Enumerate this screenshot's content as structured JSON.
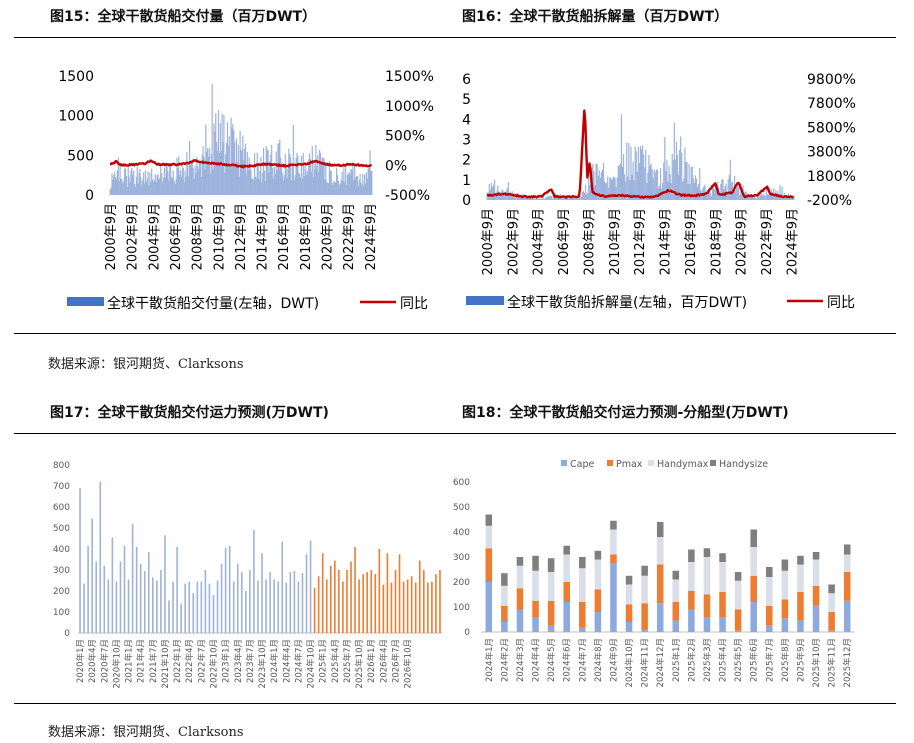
{
  "source_text": "数据来源：银河期货、Clarksons",
  "figures": {
    "fig15": {
      "title": "图15：全球干散货船交付量（百万DWT）"
    },
    "fig16": {
      "title": "图16：全球干散货船拆解量（百万DWT）"
    },
    "fig17": {
      "title": "图17：全球干散货船交付运力预测(万DWT)"
    },
    "fig18": {
      "title": "图18：全球干散货船交付运力预测-分船型(万DWT)"
    }
  },
  "colors": {
    "bar_blue": "#4472C4",
    "light_blue": "#9DB3DC",
    "line_red": "#C00000",
    "orange": "#ED7D31",
    "cape": "#8EA9DB",
    "pmax": "#ED7D31",
    "handymax": "#D9DEE8",
    "handysize": "#7F7F7F"
  },
  "chart_data": [
    {
      "id": "fig15",
      "type": "bar+line",
      "title": "全球干散货船交付量（百万DWT）",
      "x_tick_labels": [
        "2000年9月",
        "2002年9月",
        "2004年9月",
        "2006年9月",
        "2008年9月",
        "2010年9月",
        "2012年9月",
        "2014年9月",
        "2016年9月",
        "2018年9月",
        "2020年9月",
        "2022年9月",
        "2024年9月"
      ],
      "y_left": {
        "ticks": [
          "0",
          "500",
          "1000",
          "1500"
        ],
        "ylim": [
          0,
          1500
        ]
      },
      "y_right": {
        "ticks": [
          "-500%",
          "0%",
          "500%",
          "1000%",
          "1500%"
        ],
        "ylim": [
          -500,
          1500
        ]
      },
      "legend": [
        "全球干散货船交付量(左轴，DWT)",
        "同比"
      ],
      "series": [
        {
          "name": "全球干散货船交付量(左轴，DWT)",
          "axis": "left",
          "kind": "bar",
          "anchors": [
            [
              2000.7,
              200
            ],
            [
              2002,
              260
            ],
            [
              2004,
              300
            ],
            [
              2006,
              330
            ],
            [
              2008,
              430
            ],
            [
              2009.5,
              700
            ],
            [
              2010.8,
              850
            ],
            [
              2011.5,
              780
            ],
            [
              2012.5,
              650
            ],
            [
              2013.5,
              420
            ],
            [
              2014.5,
              420
            ],
            [
              2015.5,
              500
            ],
            [
              2016.5,
              530
            ],
            [
              2017.5,
              420
            ],
            [
              2018.5,
              380
            ],
            [
              2019.5,
              480
            ],
            [
              2020.5,
              430
            ],
            [
              2021.5,
              340
            ],
            [
              2022.5,
              330
            ],
            [
              2023.5,
              300
            ],
            [
              2024.8,
              270
            ]
          ]
        },
        {
          "name": "同比",
          "axis": "right",
          "kind": "line",
          "anchors": [
            [
              2000.7,
              20
            ],
            [
              2001.3,
              60
            ],
            [
              2001.8,
              0
            ],
            [
              2003,
              10
            ],
            [
              2004,
              30
            ],
            [
              2004.5,
              80
            ],
            [
              2005,
              20
            ],
            [
              2006,
              10
            ],
            [
              2007,
              15
            ],
            [
              2008,
              40
            ],
            [
              2008.5,
              90
            ],
            [
              2009,
              60
            ],
            [
              2010,
              35
            ],
            [
              2011,
              20
            ],
            [
              2012,
              0
            ],
            [
              2013,
              -20
            ],
            [
              2014,
              -5
            ],
            [
              2015,
              20
            ],
            [
              2016,
              5
            ],
            [
              2017,
              -10
            ],
            [
              2018,
              10
            ],
            [
              2019,
              25
            ],
            [
              2019.7,
              75
            ],
            [
              2020.2,
              40
            ],
            [
              2021,
              5
            ],
            [
              2022,
              -5
            ],
            [
              2023,
              20
            ],
            [
              2024,
              -5
            ],
            [
              2024.8,
              -10
            ]
          ]
        }
      ]
    },
    {
      "id": "fig16",
      "type": "bar+line",
      "title": "全球干散货船拆解量（百万DWT）",
      "x_tick_labels": [
        "2000年9月",
        "2002年9月",
        "2004年9月",
        "2006年9月",
        "2008年9月",
        "2010年9月",
        "2012年9月",
        "2014年9月",
        "2016年9月",
        "2018年9月",
        "2020年9月",
        "2022年9月",
        "2024年9月"
      ],
      "y_left": {
        "ticks": [
          "0",
          "1",
          "2",
          "3",
          "4",
          "5",
          "6"
        ],
        "ylim": [
          0,
          6
        ]
      },
      "y_right": {
        "ticks": [
          "-200%",
          "1800%",
          "3800%",
          "5800%",
          "7800%",
          "9800%"
        ],
        "ylim": [
          -200,
          9800
        ]
      },
      "legend": [
        "全球干散货船拆解量(左轴，百万DWT)",
        "同比"
      ],
      "series": [
        {
          "name": "全球干散货船拆解量(左轴，百万DWT)",
          "axis": "left",
          "kind": "bar",
          "anchors": [
            [
              2000.7,
              0.6
            ],
            [
              2002,
              0.5
            ],
            [
              2003,
              0.3
            ],
            [
              2004,
              0.15
            ],
            [
              2005,
              0.1
            ],
            [
              2006,
              0.2
            ],
            [
              2007,
              0.1
            ],
            [
              2008,
              0.2
            ],
            [
              2008.7,
              0.9
            ],
            [
              2009,
              1.8
            ],
            [
              2010,
              1.2
            ],
            [
              2011,
              1.9
            ],
            [
              2012,
              2.4
            ],
            [
              2013,
              2.1
            ],
            [
              2014,
              1.2
            ],
            [
              2015,
              2.0
            ],
            [
              2016,
              2.4
            ],
            [
              2017,
              1.3
            ],
            [
              2018,
              0.5
            ],
            [
              2019,
              0.7
            ],
            [
              2020,
              1.0
            ],
            [
              2021,
              0.4
            ],
            [
              2022,
              0.2
            ],
            [
              2023,
              0.5
            ],
            [
              2024,
              0.3
            ],
            [
              2024.8,
              0.2
            ]
          ]
        },
        {
          "name": "同比",
          "axis": "right",
          "kind": "line",
          "anchors": [
            [
              2000.7,
              200
            ],
            [
              2002,
              300
            ],
            [
              2003.5,
              100
            ],
            [
              2004,
              50
            ],
            [
              2005,
              80
            ],
            [
              2005.8,
              700
            ],
            [
              2006,
              100
            ],
            [
              2007,
              50
            ],
            [
              2008,
              100
            ],
            [
              2008.4,
              7800
            ],
            [
              2008.6,
              1500
            ],
            [
              2008.8,
              3000
            ],
            [
              2009,
              400
            ],
            [
              2010,
              100
            ],
            [
              2011,
              200
            ],
            [
              2012,
              100
            ],
            [
              2013,
              50
            ],
            [
              2014,
              80
            ],
            [
              2015,
              600
            ],
            [
              2016,
              200
            ],
            [
              2017,
              150
            ],
            [
              2018,
              300
            ],
            [
              2018.7,
              1200
            ],
            [
              2019,
              200
            ],
            [
              2020,
              400
            ],
            [
              2020.5,
              1300
            ],
            [
              2021,
              100
            ],
            [
              2022,
              200
            ],
            [
              2022.8,
              900
            ],
            [
              2023,
              300
            ],
            [
              2024,
              100
            ],
            [
              2024.8,
              50
            ]
          ]
        }
      ]
    },
    {
      "id": "fig17",
      "type": "bar",
      "title": "全球干散货船交付运力预测(万DWT)",
      "y_ticks": [
        "0",
        "100",
        "200",
        "300",
        "400",
        "500",
        "600",
        "700",
        "800"
      ],
      "ylim": [
        0,
        800
      ],
      "x_tick_labels": [
        "2020年1月",
        "2020年4月",
        "2020年7月",
        "2020年10月",
        "2021年1月",
        "2021年4月",
        "2021年7月",
        "2021年10月",
        "2022年1月",
        "2022年4月",
        "2022年7月",
        "2022年10月",
        "2023年1月",
        "2023年4月",
        "2023年7月",
        "2023年10月",
        "2024年1月",
        "2024年4月",
        "2024年7月",
        "2024年10月",
        "2025年1月",
        "2025年4月",
        "2025年7月",
        "2025年10月",
        "2026年1月",
        "2026年4月",
        "2026年7月",
        "2026年10月"
      ],
      "start_month": "2020-01",
      "forecast_from_index": 58,
      "series": [
        {
          "name": "交付运力",
          "values": [
            690,
            235,
            415,
            545,
            340,
            720,
            320,
            255,
            455,
            245,
            340,
            415,
            255,
            520,
            410,
            330,
            295,
            385,
            265,
            250,
            300,
            465,
            155,
            245,
            410,
            140,
            235,
            245,
            190,
            245,
            245,
            300,
            235,
            180,
            250,
            330,
            405,
            415,
            245,
            330,
            290,
            200,
            300,
            490,
            250,
            380,
            255,
            290,
            255,
            245,
            435,
            240,
            290,
            295,
            245,
            285,
            375,
            440,
            215,
            270,
            380,
            255,
            320,
            345,
            300,
            245,
            300,
            340,
            410,
            255,
            280,
            290,
            300,
            280,
            400,
            230,
            380,
            240,
            300,
            375,
            245,
            255,
            270,
            240,
            345,
            300,
            240,
            245,
            280,
            300
          ]
        }
      ]
    },
    {
      "id": "fig18",
      "type": "stacked_bar",
      "title": "全球干散货船交付运力预测-分船型(万DWT)",
      "y_ticks": [
        "0",
        "100",
        "200",
        "300",
        "400",
        "500",
        "600"
      ],
      "ylim": [
        0,
        600
      ],
      "legend": [
        "Cape",
        "Pmax",
        "Handymax",
        "Handysize"
      ],
      "categories": [
        "2024年1月",
        "2024年2月",
        "2024年3月",
        "2024年4月",
        "2024年5月",
        "2024年6月",
        "2024年7月",
        "2024年8月",
        "2024年9月",
        "2024年10月",
        "2024年11月",
        "2024年12月",
        "2025年1月",
        "2025年2月",
        "2025年3月",
        "2025年4月",
        "2025年5月",
        "2025年6月",
        "2025年7月",
        "2025年8月",
        "2025年9月",
        "2025年10月",
        "2025年11月",
        "2025年12月"
      ],
      "series": [
        {
          "name": "Cape",
          "values": [
            200,
            40,
            90,
            60,
            25,
            120,
            20,
            80,
            275,
            40,
            10,
            115,
            45,
            90,
            60,
            60,
            5,
            120,
            25,
            55,
            45,
            105,
            5,
            125
          ]
        },
        {
          "name": "Pmax",
          "values": [
            135,
            65,
            85,
            65,
            100,
            80,
            100,
            90,
            35,
            70,
            105,
            155,
            75,
            75,
            90,
            100,
            85,
            105,
            80,
            75,
            115,
            80,
            75,
            115
          ]
        },
        {
          "name": "Handymax",
          "values": [
            90,
            80,
            90,
            120,
            115,
            110,
            135,
            120,
            100,
            80,
            110,
            110,
            90,
            115,
            150,
            120,
            115,
            115,
            115,
            115,
            110,
            105,
            75,
            70
          ]
        },
        {
          "name": "Handysize",
          "values": [
            45,
            50,
            35,
            60,
            55,
            35,
            45,
            35,
            35,
            35,
            40,
            60,
            35,
            50,
            35,
            35,
            35,
            70,
            40,
            45,
            35,
            30,
            35,
            40
          ]
        }
      ]
    }
  ]
}
